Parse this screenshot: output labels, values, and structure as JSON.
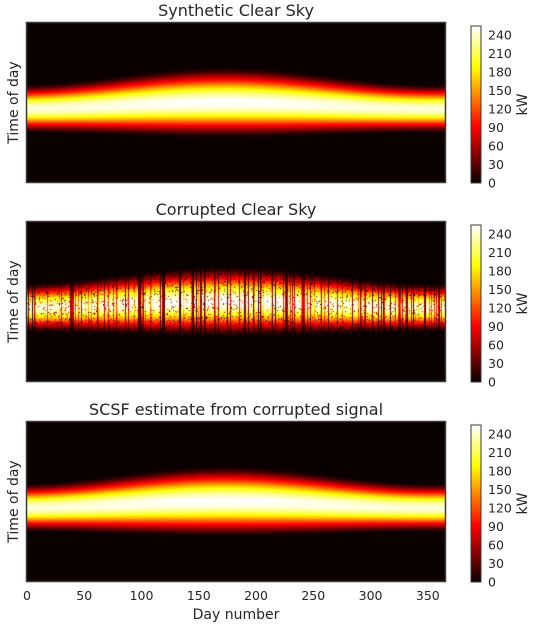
{
  "chart_data": [
    {
      "type": "heatmap",
      "title": "Synthetic Clear Sky",
      "ylabel": "Time of day",
      "xlabel": "",
      "xlim": [
        0,
        365
      ],
      "colorbar": {
        "label": "kW",
        "range": [
          0,
          255
        ],
        "ticks": [
          "0",
          "30",
          "60",
          "90",
          "120",
          "150",
          "180",
          "210",
          "240"
        ]
      },
      "colormap": "hot",
      "corrupted": false
    },
    {
      "type": "heatmap",
      "title": "Corrupted Clear Sky",
      "ylabel": "Time of day",
      "xlabel": "",
      "xlim": [
        0,
        365
      ],
      "colorbar": {
        "label": "kW",
        "range": [
          0,
          255
        ],
        "ticks": [
          "0",
          "30",
          "60",
          "90",
          "120",
          "150",
          "180",
          "210",
          "240"
        ]
      },
      "colormap": "hot",
      "corrupted": true
    },
    {
      "type": "heatmap",
      "title": "SCSF estimate from corrupted signal",
      "ylabel": "Time of day",
      "xlabel": "Day number",
      "xlim": [
        0,
        365
      ],
      "xticks": [
        "0",
        "50",
        "100",
        "150",
        "200",
        "250",
        "300",
        "350"
      ],
      "colorbar": {
        "label": "kW",
        "range": [
          0,
          255
        ],
        "ticks": [
          "0",
          "30",
          "60",
          "90",
          "120",
          "150",
          "180",
          "210",
          "240"
        ]
      },
      "colormap": "hot",
      "corrupted": false
    }
  ]
}
